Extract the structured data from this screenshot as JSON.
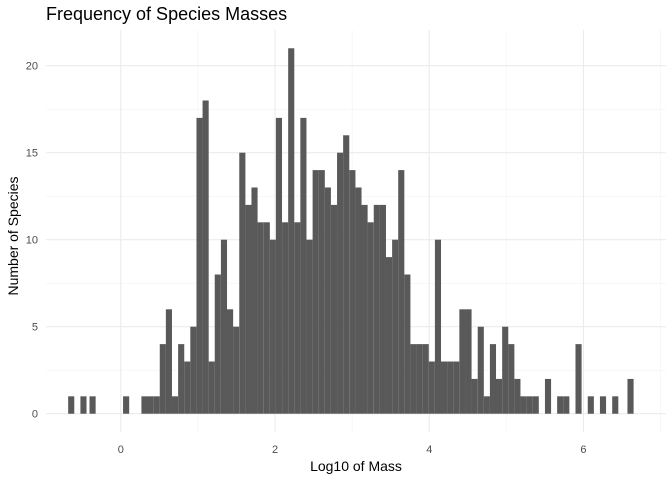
{
  "chart_data": {
    "type": "bar",
    "title": "Frequency of Species Masses",
    "xlabel": "Log10 of Mass",
    "ylabel": "Number of Species",
    "xlim": [
      -0.97,
      7.07
    ],
    "ylim": [
      -1.05,
      22.05
    ],
    "xticks": [
      0,
      2,
      4,
      6
    ],
    "yticks": [
      0,
      5,
      10,
      15,
      20
    ],
    "grid": true,
    "bin_width": 0.0794,
    "series": [
      {
        "x": [
          -0.643,
          -0.484,
          -0.366,
          0.069,
          0.307,
          0.386,
          0.466,
          0.545,
          0.624,
          0.703,
          0.783,
          0.862,
          0.941,
          1.021,
          1.1,
          1.179,
          1.258,
          1.338,
          1.417,
          1.496,
          1.576,
          1.655,
          1.734,
          1.813,
          1.893,
          1.972,
          2.051,
          2.131,
          2.21,
          2.289,
          2.368,
          2.448,
          2.527,
          2.606,
          2.685,
          2.765,
          2.844,
          2.923,
          3.003,
          3.082,
          3.161,
          3.24,
          3.32,
          3.399,
          3.478,
          3.558,
          3.637,
          3.716,
          3.795,
          3.875,
          3.954,
          4.033,
          4.113,
          4.192,
          4.271,
          4.35,
          4.43,
          4.509,
          4.588,
          4.668,
          4.747,
          4.826,
          4.905,
          4.985,
          5.064,
          5.143,
          5.222,
          5.302,
          5.381,
          5.54,
          5.698,
          5.777,
          5.936,
          6.095,
          6.253,
          6.412,
          6.61
        ],
        "values": [
          1,
          1,
          1,
          1,
          1,
          1,
          1,
          4,
          6,
          1,
          4,
          3,
          5,
          17,
          18,
          3,
          8,
          10,
          6,
          5,
          15,
          12,
          13,
          11,
          11,
          10,
          17,
          11,
          21,
          11,
          17,
          10,
          14,
          14,
          13,
          12,
          15,
          16,
          14,
          13,
          12,
          11,
          12,
          12,
          9,
          10,
          14,
          8,
          4,
          4,
          4,
          3,
          10,
          3,
          3,
          3,
          6,
          6,
          2,
          5,
          1,
          4,
          2,
          5,
          4,
          2,
          1,
          1,
          1,
          2,
          1,
          1,
          4,
          1,
          1,
          1,
          2
        ]
      }
    ]
  }
}
